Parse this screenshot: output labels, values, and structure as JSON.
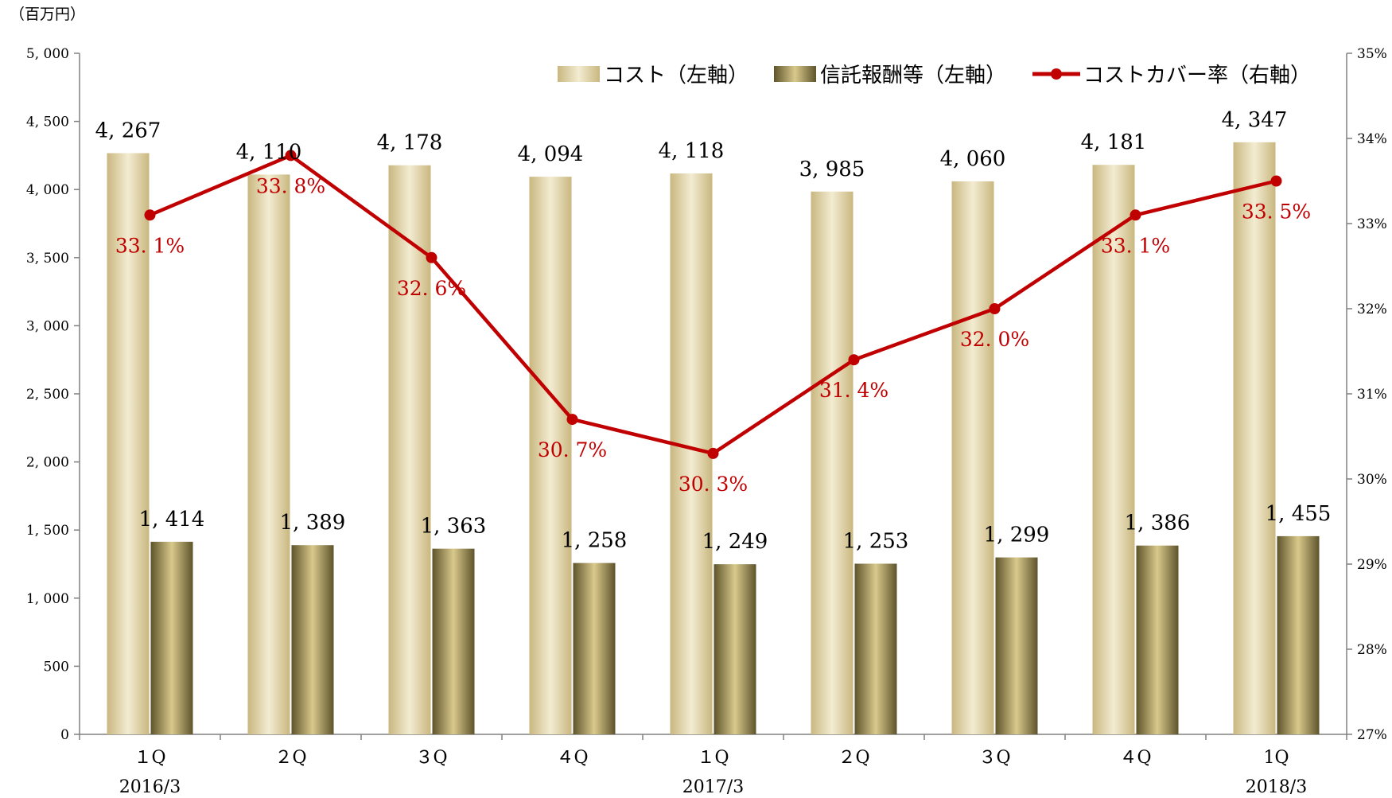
{
  "unit_label": "（百万円）",
  "chart_data": {
    "type": "bar",
    "categories": [
      "１Q",
      "２Q",
      "３Q",
      "４Q",
      "１Q",
      "２Q",
      "３Q",
      "４Q",
      "1Q"
    ],
    "period_labels": [
      {
        "text": "2016/3",
        "category_index": 0
      },
      {
        "text": "2017/3",
        "category_index": 4
      },
      {
        "text": "2018/3",
        "category_index": 8
      }
    ],
    "series": [
      {
        "name": "コスト（左軸）",
        "type": "bar",
        "axis": "left",
        "values": [
          4267,
          4110,
          4178,
          4094,
          4118,
          3985,
          4060,
          4181,
          4347
        ],
        "labels": [
          "4, 267",
          "4, 110",
          "4, 178",
          "4, 094",
          "4, 118",
          "3, 985",
          "4, 060",
          "4, 181",
          "4, 347"
        ]
      },
      {
        "name": "信託報酬等（左軸）",
        "type": "bar",
        "axis": "left",
        "values": [
          1414,
          1389,
          1363,
          1258,
          1249,
          1253,
          1299,
          1386,
          1455
        ],
        "labels": [
          "1, 414",
          "1, 389",
          "1, 363",
          "1, 258",
          "1, 249",
          "1, 253",
          "1, 299",
          "1, 386",
          "1, 455"
        ]
      },
      {
        "name": "コストカバー率（右軸）",
        "type": "line",
        "axis": "right",
        "values": [
          33.1,
          33.8,
          32.6,
          30.7,
          30.3,
          31.4,
          32.0,
          33.1,
          33.5
        ],
        "labels": [
          "33. 1%",
          "33. 8%",
          "32. 6%",
          "30. 7%",
          "30. 3%",
          "31. 4%",
          "32. 0%",
          "33. 1%",
          "33. 5%"
        ]
      }
    ],
    "y_left": {
      "ylim": [
        0,
        5000
      ],
      "ticks": [
        0,
        500,
        1000,
        1500,
        2000,
        2500,
        3000,
        3500,
        4000,
        4500,
        5000
      ],
      "tick_labels": [
        "0",
        "500",
        "1, 000",
        "1, 500",
        "2, 000",
        "2, 500",
        "3, 000",
        "3, 500",
        "4, 000",
        "4, 500",
        "5, 000"
      ]
    },
    "y_right": {
      "ylim": [
        27,
        35
      ],
      "ticks": [
        27,
        28,
        29,
        30,
        31,
        32,
        33,
        34,
        35
      ],
      "tick_labels": [
        "27%",
        "28%",
        "29%",
        "30%",
        "31%",
        "32%",
        "33%",
        "34%",
        "35%"
      ]
    },
    "grid": false,
    "legend": "top-right",
    "colors": {
      "cost_light": "#f3ecd2",
      "cost_dark": "#c9b77f",
      "fee_light": "#d9c98c",
      "fee_dark": "#5e542b",
      "line": "#c00000",
      "axis": "#808080"
    }
  }
}
